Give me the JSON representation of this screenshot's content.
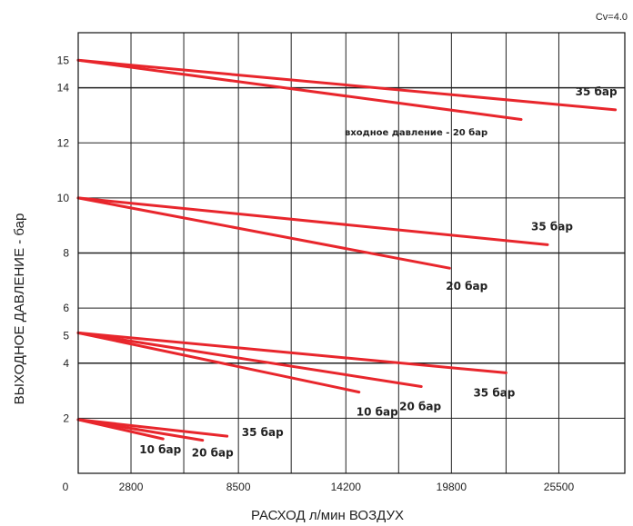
{
  "chart_data": {
    "type": "line",
    "title": "",
    "corner_note": "Cv=4.0",
    "xlabel": "РАСХОД л/мин ВОЗДУХ",
    "ylabel": "ВЫХОДНОЕ ДАВЛЕНИЕ - бар",
    "xlim": [
      0,
      29000
    ],
    "ylim": [
      0,
      16
    ],
    "x_ticks": [
      2800,
      8500,
      14200,
      19800,
      25500
    ],
    "x_tick_labels": [
      "2800",
      "8500",
      "14200",
      "19800",
      "25500"
    ],
    "x_origin_label": "0",
    "y_ticks": [
      2,
      4,
      5,
      6,
      8,
      10,
      12,
      14,
      15
    ],
    "y_tick_labels": [
      "2",
      "4",
      "5",
      "6",
      "8",
      "10",
      "12",
      "14",
      "15"
    ],
    "x_gridlines": [
      2800,
      5600,
      8500,
      11300,
      14200,
      17000,
      19800,
      22700,
      25500
    ],
    "y_gridlines": [
      2,
      4,
      6,
      8,
      10,
      12,
      14
    ],
    "emphasized_y_lines": [
      4,
      8,
      14
    ],
    "grid": true,
    "line_color": "#e8262c",
    "annotation": "входное давление - 20 бар",
    "series": [
      {
        "label": "35 бар",
        "x": [
          0,
          28500
        ],
        "y": [
          15,
          13.2
        ]
      },
      {
        "label": "",
        "x": [
          0,
          23500
        ],
        "y": [
          15,
          12.85
        ]
      },
      {
        "label": "35 бар",
        "x": [
          0,
          24900
        ],
        "y": [
          10,
          8.3
        ]
      },
      {
        "label": "20 бар",
        "x": [
          0,
          19700
        ],
        "y": [
          10,
          7.45
        ]
      },
      {
        "label": "35 бар",
        "x": [
          0,
          22700
        ],
        "y": [
          5.1,
          3.65
        ]
      },
      {
        "label": "20 бар",
        "x": [
          0,
          18200
        ],
        "y": [
          5.1,
          3.15
        ]
      },
      {
        "label": "10 бар",
        "x": [
          0,
          14900
        ],
        "y": [
          5.1,
          2.95
        ]
      },
      {
        "label": "35 бар",
        "x": [
          0,
          7900
        ],
        "y": [
          1.95,
          1.35
        ]
      },
      {
        "label": "20 бар",
        "x": [
          0,
          6600
        ],
        "y": [
          1.95,
          1.2
        ]
      },
      {
        "label": "10 бар",
        "x": [
          0,
          4500
        ],
        "y": [
          1.95,
          1.25
        ]
      }
    ]
  }
}
